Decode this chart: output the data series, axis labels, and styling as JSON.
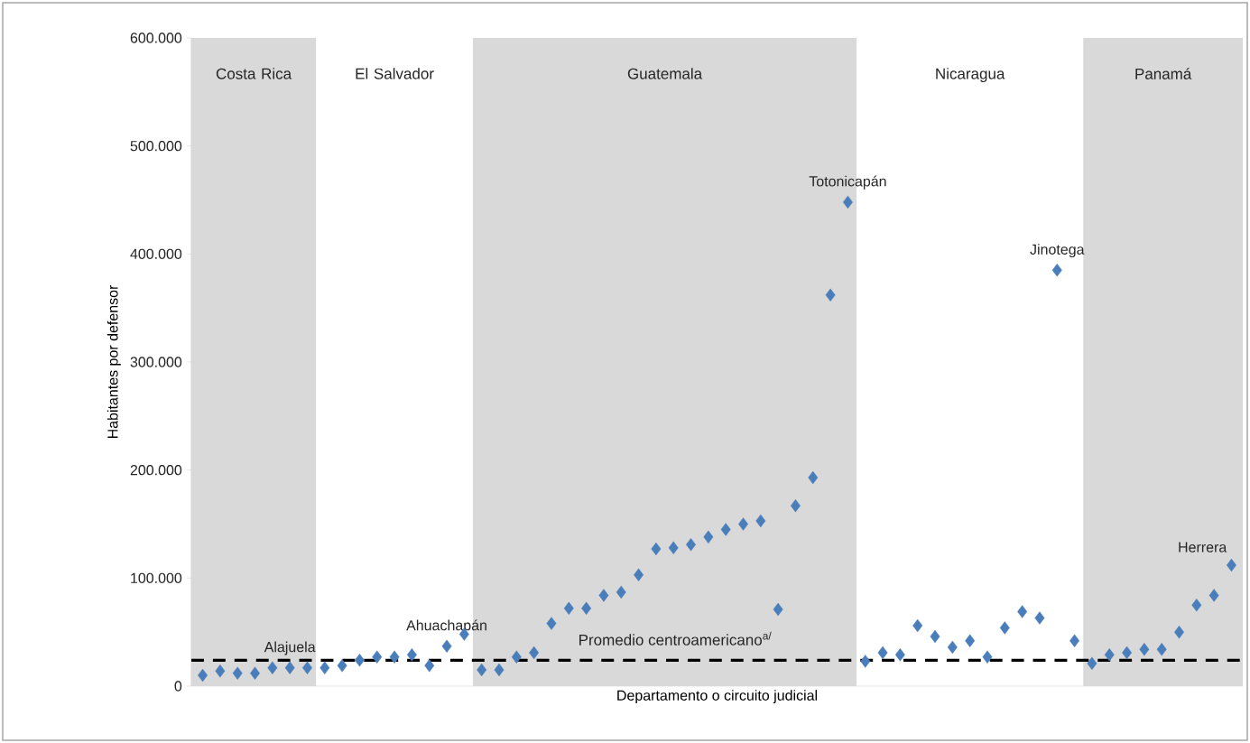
{
  "chart_data": {
    "type": "scatter",
    "xlabel": "Departamento o circuito judicial",
    "ylabel": "Habitantes por defensor",
    "categories": [
      null,
      null,
      null,
      null,
      null,
      null,
      null,
      null,
      null,
      null,
      null,
      null,
      null,
      null,
      null,
      null,
      null,
      null,
      null,
      null,
      null,
      null,
      null,
      null,
      null,
      null,
      null,
      null,
      null,
      null,
      null,
      null,
      null,
      null,
      null,
      null,
      null,
      null,
      null,
      null,
      null,
      null,
      null,
      null,
      null,
      null,
      null,
      null,
      null,
      null,
      null,
      null,
      null,
      null,
      null,
      null,
      null,
      null,
      null,
      null
    ],
    "series": [
      {
        "color": "#4a7ebb",
        "values": [
          10000,
          14000,
          12000,
          12000,
          17000,
          17000,
          17000,
          null,
          null,
          null,
          null,
          null,
          null,
          null,
          null,
          null,
          null,
          null,
          null,
          null,
          null,
          null,
          null,
          null,
          null,
          null,
          null,
          null,
          null,
          null,
          null,
          null,
          null,
          null,
          null,
          null,
          null,
          null,
          null,
          null,
          null,
          null,
          null,
          null,
          null,
          null,
          null,
          null,
          null,
          null,
          null,
          null,
          null,
          null,
          null,
          null,
          null,
          null,
          null,
          null
        ],
        "value_labels": [
          null,
          null,
          null,
          null,
          null,
          "Alajuela",
          null,
          null,
          null,
          null,
          null,
          null,
          null,
          null,
          null,
          null,
          null,
          null,
          null,
          null,
          null,
          null,
          null,
          null,
          null,
          null,
          null,
          null,
          null,
          null,
          null,
          null,
          null,
          null,
          null,
          null,
          null,
          null,
          null,
          null,
          null,
          null,
          null,
          null,
          null,
          null,
          null,
          null,
          null,
          null,
          null,
          null,
          null,
          null,
          null,
          null,
          null,
          null,
          null,
          null
        ]
      },
      {
        "color": "#4a7ebb",
        "values": [
          null,
          null,
          null,
          null,
          null,
          null,
          null,
          17000,
          19000,
          24000,
          27000,
          27000,
          29000,
          19000,
          37000,
          48000,
          null,
          null,
          null,
          null,
          null,
          null,
          null,
          null,
          null,
          null,
          null,
          null,
          null,
          null,
          null,
          null,
          null,
          null,
          null,
          null,
          null,
          null,
          null,
          null,
          null,
          null,
          null,
          null,
          null,
          null,
          null,
          null,
          null,
          null,
          null,
          null,
          null,
          null,
          null,
          null,
          null,
          null,
          null,
          null
        ],
        "value_labels": [
          null,
          null,
          null,
          null,
          null,
          null,
          null,
          null,
          null,
          null,
          null,
          null,
          null,
          null,
          "Ahuachapán",
          null,
          null,
          null,
          null,
          null,
          null,
          null,
          null,
          null,
          null,
          null,
          null,
          null,
          null,
          null,
          null,
          null,
          null,
          null,
          null,
          null,
          null,
          null,
          null,
          null,
          null,
          null,
          null,
          null,
          null,
          null,
          null,
          null,
          null,
          null,
          null,
          null,
          null,
          null,
          null,
          null,
          null,
          null,
          null,
          null
        ]
      },
      {
        "color": "#4a7ebb",
        "values": [
          null,
          null,
          null,
          null,
          null,
          null,
          null,
          null,
          null,
          null,
          null,
          null,
          null,
          null,
          null,
          null,
          15000,
          15000,
          27000,
          31000,
          58000,
          72000,
          72000,
          84000,
          87000,
          103000,
          127000,
          128000,
          131000,
          138000,
          145000,
          150000,
          153000,
          71000,
          167000,
          193000,
          362000,
          448000,
          null,
          null,
          null,
          null,
          null,
          null,
          null,
          null,
          null,
          null,
          null,
          null,
          null,
          null,
          null,
          null,
          null,
          null,
          null,
          null,
          null,
          null
        ],
        "value_labels": [
          null,
          null,
          null,
          null,
          null,
          null,
          null,
          null,
          null,
          null,
          null,
          null,
          null,
          null,
          null,
          null,
          null,
          null,
          null,
          null,
          null,
          null,
          null,
          null,
          null,
          null,
          null,
          null,
          null,
          null,
          null,
          null,
          null,
          null,
          null,
          null,
          null,
          "Totonicapán",
          null,
          null,
          null,
          null,
          null,
          null,
          null,
          null,
          null,
          null,
          null,
          null,
          null,
          null,
          null,
          null,
          null,
          null,
          null,
          null,
          null,
          null
        ]
      },
      {
        "color": "#4a7ebb",
        "values": [
          null,
          null,
          null,
          null,
          null,
          null,
          null,
          null,
          null,
          null,
          null,
          null,
          null,
          null,
          null,
          null,
          null,
          null,
          null,
          null,
          null,
          null,
          null,
          null,
          null,
          null,
          null,
          null,
          null,
          null,
          null,
          null,
          null,
          null,
          null,
          null,
          null,
          null,
          23000,
          31000,
          29000,
          56000,
          46000,
          36000,
          42000,
          27000,
          54000,
          69000,
          63000,
          385000,
          42000,
          null,
          null,
          null,
          null,
          null,
          null,
          null,
          null,
          null
        ],
        "value_labels": [
          null,
          null,
          null,
          null,
          null,
          null,
          null,
          null,
          null,
          null,
          null,
          null,
          null,
          null,
          null,
          null,
          null,
          null,
          null,
          null,
          null,
          null,
          null,
          null,
          null,
          null,
          null,
          null,
          null,
          null,
          null,
          null,
          null,
          null,
          null,
          null,
          null,
          null,
          null,
          null,
          null,
          null,
          null,
          null,
          null,
          null,
          null,
          null,
          null,
          "Jinotega",
          null,
          null,
          null,
          null,
          null,
          null,
          null,
          null,
          null,
          null
        ]
      },
      {
        "color": "#4a7ebb",
        "values": [
          null,
          null,
          null,
          null,
          null,
          null,
          null,
          null,
          null,
          null,
          null,
          null,
          null,
          null,
          null,
          null,
          null,
          null,
          null,
          null,
          null,
          null,
          null,
          null,
          null,
          null,
          null,
          null,
          null,
          null,
          null,
          null,
          null,
          null,
          null,
          null,
          null,
          null,
          null,
          null,
          null,
          null,
          null,
          null,
          null,
          null,
          null,
          null,
          null,
          null,
          null,
          21000,
          29000,
          31000,
          34000,
          34000,
          50000,
          75000,
          84000,
          112000
        ],
        "value_labels": [
          null,
          null,
          null,
          null,
          null,
          null,
          null,
          null,
          null,
          null,
          null,
          null,
          null,
          null,
          null,
          null,
          null,
          null,
          null,
          null,
          null,
          null,
          null,
          null,
          null,
          null,
          null,
          null,
          null,
          null,
          null,
          null,
          null,
          null,
          null,
          null,
          null,
          null,
          null,
          null,
          null,
          null,
          null,
          null,
          null,
          null,
          null,
          null,
          null,
          null,
          null,
          null,
          null,
          null,
          null,
          null,
          null,
          null,
          null,
          "Herrera"
        ]
      }
    ],
    "ylim": [
      0,
      600000
    ],
    "yticks": [
      {
        "value": 0,
        "label": "0"
      },
      {
        "value": 100000,
        "label": "100.000"
      },
      {
        "value": 200000,
        "label": "200.000"
      },
      {
        "value": 300000,
        "label": "300.000"
      },
      {
        "value": 400000,
        "label": "400.000"
      },
      {
        "value": 500000,
        "label": "500.000"
      },
      {
        "value": 600000,
        "label": "600.000"
      }
    ],
    "annotations": [
      "Costa Rica",
      "El Salvador",
      "Guatemala",
      "Nicaragua",
      "Panamá"
    ],
    "tick_labels": "y",
    "marker": "diamond",
    "ref_lines": [
      {
        "axis": "y",
        "value": 24000,
        "label": "Promedio centroamericano$^{a/}$",
        "color": "#000000",
        "line_style": "dashed"
      }
    ]
  }
}
